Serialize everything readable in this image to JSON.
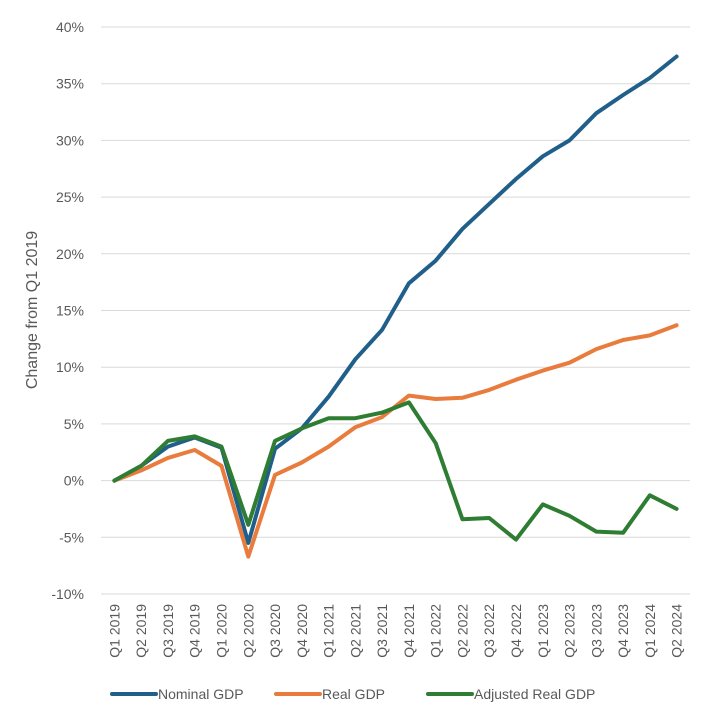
{
  "chart_data": {
    "type": "line",
    "title": "",
    "xlabel": "",
    "ylabel": "Change from Q1 2019",
    "ylim": [
      -10,
      40
    ],
    "ytick_step": 5,
    "ytick_labels": [
      "-10%",
      "-5%",
      "0%",
      "5%",
      "10%",
      "15%",
      "20%",
      "25%",
      "30%",
      "35%",
      "40%"
    ],
    "grid": true,
    "legend": "bottom",
    "categories": [
      "Q1 2019",
      "Q2 2019",
      "Q3 2019",
      "Q4 2019",
      "Q1 2020",
      "Q2 2020",
      "Q3 2020",
      "Q4 2020",
      "Q1 2021",
      "Q2 2021",
      "Q3 2021",
      "Q4 2021",
      "Q1 2022",
      "Q2 2022",
      "Q3 2022",
      "Q4 2022",
      "Q1 2023",
      "Q2 2023",
      "Q3 2023",
      "Q4 2023",
      "Q1 2024",
      "Q2 2024"
    ],
    "series": [
      {
        "name": "Nominal GDP",
        "color": "#1f5f89",
        "values": [
          0,
          1.3,
          3.0,
          3.8,
          2.9,
          -5.5,
          2.8,
          4.6,
          7.4,
          10.7,
          13.3,
          17.4,
          19.4,
          22.2,
          24.4,
          26.6,
          28.6,
          30.0,
          32.4,
          34.0,
          35.5,
          37.4
        ]
      },
      {
        "name": "Real GDP",
        "color": "#e97b3c",
        "values": [
          0,
          0.9,
          2.0,
          2.7,
          1.3,
          -6.7,
          0.5,
          1.6,
          3.0,
          4.7,
          5.6,
          7.5,
          7.2,
          7.3,
          8.0,
          8.9,
          9.7,
          10.4,
          11.6,
          12.4,
          12.8,
          13.7
        ]
      },
      {
        "name": "Adjusted Real GDP",
        "color": "#2e7d32",
        "values": [
          0,
          1.3,
          3.5,
          3.9,
          3.0,
          -3.9,
          3.5,
          4.6,
          5.5,
          5.5,
          6.0,
          6.9,
          3.3,
          -3.4,
          -3.3,
          -5.2,
          -2.1,
          -3.1,
          -4.5,
          -4.6,
          -1.3,
          -2.5
        ]
      }
    ]
  }
}
